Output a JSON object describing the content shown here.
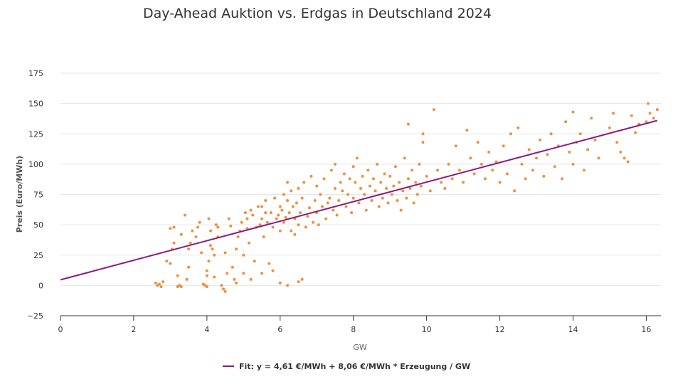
{
  "chart_data": {
    "type": "scatter",
    "title": "Day-Ahead Auktion vs. Erdgas in Deutschland 2024",
    "xlabel": "GW",
    "ylabel": "Preis (Euro/MWh)",
    "xlim": [
      0,
      16.4
    ],
    "ylim": [
      -25,
      175
    ],
    "x_ticks": [
      0,
      2,
      4,
      6,
      8,
      10,
      12,
      14,
      16
    ],
    "y_ticks": [
      -25,
      0,
      25,
      50,
      75,
      100,
      125,
      150,
      175
    ],
    "grid": "horizontal",
    "legend_position": "bottom-center",
    "colors": {
      "points": "#f28e3d",
      "fit": "#8b1a7e",
      "grid": "#e6e6e6",
      "axis": "#333333"
    },
    "fit": {
      "label": "Fit: y = 4,61 €/MWh + 8,06 €/MWh * Erzeugung / GW",
      "intercept": 4.61,
      "slope": 8.06,
      "x_range": [
        0,
        16.3
      ]
    },
    "points": [
      [
        2.6,
        2
      ],
      [
        2.65,
        0
      ],
      [
        2.7,
        1
      ],
      [
        2.75,
        -1
      ],
      [
        2.8,
        3
      ],
      [
        2.9,
        20
      ],
      [
        3.0,
        18
      ],
      [
        3.05,
        30
      ],
      [
        3.0,
        47
      ],
      [
        3.1,
        48
      ],
      [
        3.1,
        35
      ],
      [
        3.2,
        8
      ],
      [
        3.2,
        -1
      ],
      [
        3.25,
        0
      ],
      [
        3.3,
        -1
      ],
      [
        3.3,
        42
      ],
      [
        3.4,
        58
      ],
      [
        3.45,
        5
      ],
      [
        3.5,
        15
      ],
      [
        3.5,
        30
      ],
      [
        3.55,
        35
      ],
      [
        3.6,
        45
      ],
      [
        3.7,
        40
      ],
      [
        3.75,
        48
      ],
      [
        3.8,
        52
      ],
      [
        3.85,
        27
      ],
      [
        3.9,
        1
      ],
      [
        3.95,
        0
      ],
      [
        4.0,
        -1
      ],
      [
        4.0,
        8
      ],
      [
        4.05,
        20
      ],
      [
        4.0,
        12
      ],
      [
        4.05,
        55
      ],
      [
        4.1,
        45
      ],
      [
        4.1,
        33
      ],
      [
        4.15,
        30
      ],
      [
        4.2,
        25
      ],
      [
        4.25,
        50
      ],
      [
        4.3,
        48
      ],
      [
        4.3,
        40
      ],
      [
        4.4,
        0
      ],
      [
        4.45,
        -3
      ],
      [
        4.5,
        -5
      ],
      [
        4.5,
        27
      ],
      [
        4.55,
        10
      ],
      [
        4.6,
        55
      ],
      [
        4.65,
        49
      ],
      [
        4.7,
        15
      ],
      [
        4.75,
        5
      ],
      [
        4.8,
        2
      ],
      [
        4.8,
        30
      ],
      [
        4.85,
        40
      ],
      [
        4.9,
        45
      ],
      [
        4.95,
        52
      ],
      [
        5.0,
        25
      ],
      [
        5.0,
        10
      ],
      [
        5.05,
        60
      ],
      [
        5.1,
        55
      ],
      [
        5.1,
        47
      ],
      [
        5.15,
        35
      ],
      [
        5.2,
        5
      ],
      [
        5.2,
        62
      ],
      [
        5.25,
        58
      ],
      [
        5.3,
        20
      ],
      [
        5.35,
        48
      ],
      [
        5.4,
        65
      ],
      [
        5.45,
        50
      ],
      [
        5.5,
        55
      ],
      [
        5.5,
        65
      ],
      [
        5.55,
        40
      ],
      [
        5.6,
        60
      ],
      [
        5.6,
        70
      ],
      [
        5.65,
        52
      ],
      [
        5.7,
        18
      ],
      [
        5.75,
        60
      ],
      [
        5.8,
        48
      ],
      [
        5.85,
        72
      ],
      [
        5.9,
        55
      ],
      [
        5.95,
        58
      ],
      [
        6.0,
        65
      ],
      [
        6.0,
        45
      ],
      [
        6.05,
        62
      ],
      [
        6.1,
        75
      ],
      [
        6.1,
        52
      ],
      [
        6.15,
        56
      ],
      [
        6.2,
        70
      ],
      [
        6.2,
        85
      ],
      [
        6.25,
        60
      ],
      [
        6.3,
        45
      ],
      [
        6.3,
        78
      ],
      [
        6.35,
        65
      ],
      [
        6.4,
        42
      ],
      [
        6.4,
        55
      ],
      [
        6.45,
        68
      ],
      [
        6.5,
        80
      ],
      [
        6.5,
        50
      ],
      [
        6.55,
        60
      ],
      [
        6.6,
        72
      ],
      [
        6.6,
        5
      ],
      [
        6.65,
        85
      ],
      [
        6.7,
        48
      ],
      [
        6.75,
        57
      ],
      [
        6.8,
        64
      ],
      [
        6.85,
        90
      ],
      [
        6.9,
        52
      ],
      [
        6.95,
        70
      ],
      [
        7.0,
        60
      ],
      [
        7.0,
        82
      ],
      [
        7.05,
        50
      ],
      [
        7.1,
        75
      ],
      [
        7.15,
        65
      ],
      [
        7.2,
        88
      ],
      [
        7.25,
        55
      ],
      [
        7.3,
        68
      ],
      [
        7.35,
        72
      ],
      [
        7.4,
        95
      ],
      [
        7.45,
        62
      ],
      [
        7.5,
        80
      ],
      [
        7.5,
        100
      ],
      [
        7.55,
        58
      ],
      [
        7.6,
        70
      ],
      [
        7.65,
        85
      ],
      [
        7.7,
        78
      ],
      [
        7.75,
        92
      ],
      [
        7.8,
        65
      ],
      [
        7.85,
        75
      ],
      [
        7.9,
        88
      ],
      [
        7.95,
        60
      ],
      [
        8.0,
        98
      ],
      [
        8.0,
        72
      ],
      [
        8.05,
        85
      ],
      [
        8.1,
        105
      ],
      [
        8.15,
        68
      ],
      [
        8.2,
        80
      ],
      [
        8.25,
        90
      ],
      [
        8.3,
        75
      ],
      [
        8.35,
        62
      ],
      [
        8.4,
        95
      ],
      [
        8.45,
        82
      ],
      [
        8.5,
        70
      ],
      [
        8.55,
        88
      ],
      [
        8.6,
        78
      ],
      [
        8.65,
        100
      ],
      [
        8.7,
        65
      ],
      [
        8.75,
        85
      ],
      [
        8.8,
        72
      ],
      [
        8.85,
        92
      ],
      [
        8.9,
        80
      ],
      [
        8.95,
        68
      ],
      [
        9.0,
        90
      ],
      [
        9.05,
        75
      ],
      [
        9.1,
        82
      ],
      [
        9.15,
        98
      ],
      [
        9.2,
        70
      ],
      [
        9.25,
        85
      ],
      [
        9.3,
        62
      ],
      [
        9.35,
        78
      ],
      [
        9.4,
        105
      ],
      [
        9.45,
        72
      ],
      [
        9.5,
        88
      ],
      [
        9.5,
        133
      ],
      [
        9.55,
        80
      ],
      [
        9.6,
        95
      ],
      [
        9.65,
        68
      ],
      [
        9.7,
        85
      ],
      [
        9.75,
        75
      ],
      [
        9.8,
        100
      ],
      [
        9.85,
        82
      ],
      [
        9.9,
        118
      ],
      [
        9.9,
        125
      ],
      [
        10.0,
        90
      ],
      [
        10.1,
        78
      ],
      [
        10.2,
        145
      ],
      [
        10.3,
        95
      ],
      [
        10.4,
        85
      ],
      [
        10.5,
        80
      ],
      [
        10.6,
        100
      ],
      [
        10.7,
        88
      ],
      [
        10.8,
        115
      ],
      [
        10.9,
        95
      ],
      [
        11.0,
        85
      ],
      [
        11.1,
        128
      ],
      [
        11.2,
        105
      ],
      [
        11.3,
        92
      ],
      [
        11.4,
        118
      ],
      [
        11.5,
        100
      ],
      [
        11.6,
        88
      ],
      [
        11.7,
        110
      ],
      [
        11.8,
        95
      ],
      [
        11.9,
        102
      ],
      [
        12.0,
        85
      ],
      [
        12.1,
        115
      ],
      [
        12.2,
        92
      ],
      [
        12.3,
        125
      ],
      [
        12.4,
        78
      ],
      [
        12.5,
        130
      ],
      [
        12.6,
        100
      ],
      [
        12.7,
        88
      ],
      [
        12.8,
        112
      ],
      [
        12.9,
        95
      ],
      [
        13.0,
        105
      ],
      [
        13.1,
        120
      ],
      [
        13.2,
        90
      ],
      [
        13.3,
        108
      ],
      [
        13.4,
        125
      ],
      [
        13.5,
        98
      ],
      [
        13.6,
        115
      ],
      [
        13.7,
        88
      ],
      [
        13.8,
        135
      ],
      [
        13.9,
        110
      ],
      [
        14.0,
        100
      ],
      [
        14.0,
        143
      ],
      [
        14.1,
        118
      ],
      [
        14.2,
        125
      ],
      [
        14.3,
        95
      ],
      [
        14.4,
        112
      ],
      [
        14.5,
        138
      ],
      [
        14.6,
        120
      ],
      [
        14.7,
        105
      ],
      [
        15.0,
        130
      ],
      [
        15.1,
        142
      ],
      [
        15.2,
        118
      ],
      [
        15.3,
        110
      ],
      [
        15.4,
        105
      ],
      [
        15.5,
        102
      ],
      [
        15.6,
        140
      ],
      [
        15.7,
        126
      ],
      [
        15.8,
        133
      ],
      [
        16.0,
        135
      ],
      [
        16.05,
        150
      ],
      [
        16.1,
        142
      ],
      [
        16.2,
        138
      ],
      [
        16.3,
        145
      ],
      [
        6.0,
        2
      ],
      [
        5.5,
        10
      ],
      [
        4.2,
        7
      ],
      [
        5.8,
        12
      ],
      [
        6.2,
        0
      ],
      [
        6.5,
        3
      ]
    ]
  }
}
